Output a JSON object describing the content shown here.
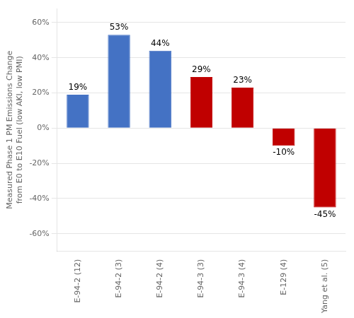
{
  "chart_data": {
    "type": "bar",
    "categories": [
      "E-94-2 (12)",
      "E-94-2 (3)",
      "E-94-2 (4)",
      "E-94-3 (3)",
      "E-94-3 (4)",
      "E-129 (4)",
      "Yang et al. (5)"
    ],
    "values": [
      0.19,
      0.53,
      0.44,
      0.29,
      0.23,
      -0.1,
      -0.45
    ],
    "value_labels": [
      "19%",
      "53%",
      "44%",
      "29%",
      "23%",
      "-10%",
      "-45%"
    ],
    "data_labels": true,
    "colors": [
      "#4472C4",
      "#4472C4",
      "#4472C4",
      "#C00000",
      "#C00000",
      "#C00000",
      "#C00000"
    ],
    "ylabel": "Measured Phase 1 PM Emissions Change\nfrom E0 to E10 Fuel (low AKI, low PMI)",
    "ylim": [
      -0.7,
      0.68
    ],
    "yticks": [
      {
        "value": -0.6,
        "label": "-60%"
      },
      {
        "value": -0.4,
        "label": "-40%"
      },
      {
        "value": -0.2,
        "label": "-20%"
      },
      {
        "value": 0.0,
        "label": "0%"
      },
      {
        "value": 0.2,
        "label": "20%"
      },
      {
        "value": 0.4,
        "label": "40%"
      },
      {
        "value": 0.6,
        "label": "60%"
      }
    ],
    "grid": true,
    "legend": false
  }
}
